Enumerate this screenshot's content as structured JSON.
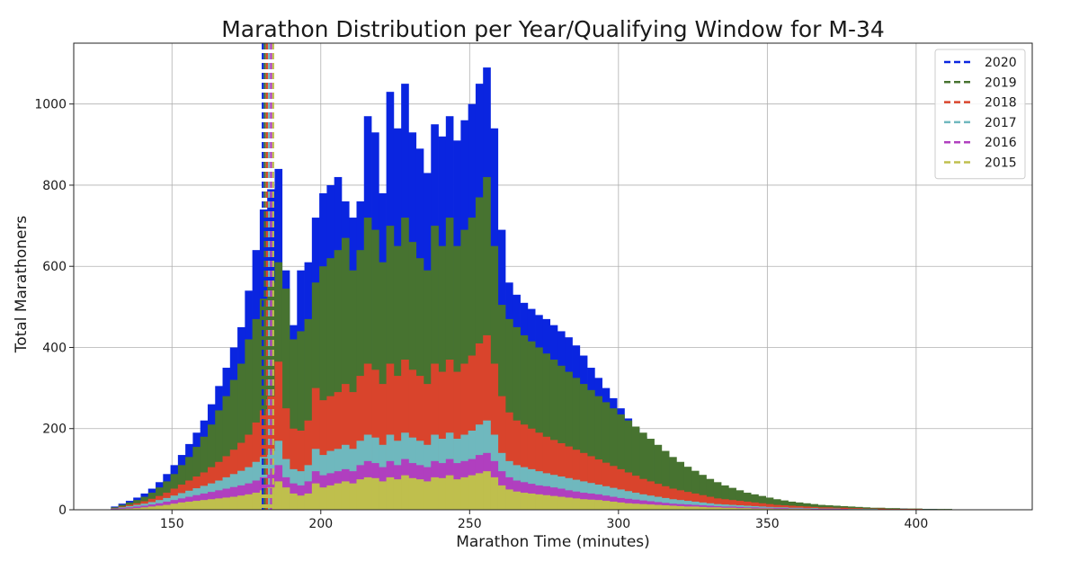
{
  "chart_data": {
    "type": "histogram",
    "title": "Marathon Distribution per Year/Qualifying Window for M-34",
    "xlabel": "Marathon Time (minutes)",
    "ylabel": "Total Marathoners",
    "xlim": [
      117,
      439
    ],
    "ylim": [
      0,
      1150
    ],
    "xticks": [
      150,
      200,
      250,
      300,
      350,
      400
    ],
    "yticks": [
      0,
      200,
      400,
      600,
      800,
      1000
    ],
    "grid": true,
    "legend_position": "top-right",
    "bin_start": 127,
    "bin_width": 2.5,
    "series": [
      {
        "name": "2015",
        "color": "#bfbf4d",
        "values": [
          0,
          1,
          2,
          3,
          4,
          6,
          8,
          10,
          12,
          15,
          18,
          20,
          22,
          24,
          26,
          28,
          30,
          32,
          35,
          38,
          42,
          48,
          55,
          70,
          55,
          40,
          35,
          40,
          65,
          55,
          60,
          65,
          70,
          65,
          75,
          80,
          78,
          70,
          80,
          75,
          85,
          78,
          75,
          70,
          80,
          78,
          85,
          75,
          80,
          85,
          90,
          95,
          80,
          60,
          50,
          45,
          42,
          40,
          38,
          36,
          34,
          32,
          30,
          28,
          26,
          25,
          24,
          22,
          20,
          18,
          16,
          15,
          14,
          13,
          12,
          11,
          10,
          9,
          8,
          8,
          7,
          6,
          6,
          5,
          5,
          4,
          4,
          3,
          3,
          3,
          2,
          2,
          2,
          2,
          2,
          1,
          1,
          1,
          1,
          1,
          1,
          1,
          1,
          1,
          1,
          1,
          1,
          1,
          1,
          1,
          1,
          1,
          1,
          1,
          1,
          1,
          1
        ]
      },
      {
        "name": "2016",
        "color": "#b03fbf",
        "values": [
          0,
          2,
          4,
          6,
          8,
          10,
          13,
          16,
          20,
          24,
          28,
          32,
          36,
          40,
          44,
          48,
          52,
          56,
          60,
          65,
          72,
          80,
          90,
          110,
          80,
          65,
          60,
          70,
          95,
          85,
          90,
          95,
          100,
          95,
          110,
          120,
          115,
          105,
          120,
          110,
          125,
          115,
          110,
          105,
          120,
          115,
          125,
          115,
          120,
          125,
          135,
          140,
          120,
          95,
          80,
          72,
          68,
          64,
          60,
          58,
          55,
          52,
          48,
          45,
          42,
          40,
          38,
          35,
          32,
          29,
          27,
          25,
          23,
          21,
          19,
          17,
          15,
          14,
          13,
          12,
          11,
          10,
          9,
          8,
          8,
          7,
          6,
          6,
          5,
          5,
          4,
          4,
          3,
          3,
          3,
          2,
          2,
          2,
          2,
          2,
          1,
          1,
          1,
          1,
          1,
          1,
          1,
          1,
          1,
          1,
          1,
          1,
          1,
          1,
          1,
          1,
          1
        ]
      },
      {
        "name": "2017",
        "color": "#6fb8be",
        "values": [
          0,
          3,
          6,
          9,
          12,
          15,
          19,
          24,
          29,
          35,
          41,
          47,
          53,
          59,
          65,
          72,
          80,
          88,
          96,
          105,
          118,
          130,
          145,
          170,
          125,
          100,
          95,
          110,
          150,
          135,
          145,
          150,
          160,
          150,
          170,
          185,
          178,
          160,
          185,
          170,
          190,
          178,
          170,
          160,
          185,
          175,
          190,
          175,
          185,
          195,
          210,
          220,
          185,
          140,
          120,
          110,
          105,
          100,
          95,
          90,
          86,
          82,
          78,
          74,
          70,
          66,
          62,
          58,
          54,
          50,
          46,
          42,
          38,
          35,
          32,
          29,
          26,
          24,
          22,
          20,
          18,
          16,
          14,
          13,
          12,
          11,
          10,
          9,
          8,
          7,
          6,
          6,
          5,
          5,
          4,
          4,
          3,
          3,
          3,
          2,
          2,
          2,
          2,
          2,
          1,
          1,
          1,
          1,
          1,
          1,
          1,
          1,
          1,
          1,
          1,
          1,
          1
        ]
      },
      {
        "name": "2018",
        "color": "#d9442c",
        "values": [
          0,
          4,
          8,
          12,
          16,
          21,
          27,
          34,
          42,
          52,
          62,
          72,
          82,
          92,
          105,
          118,
          132,
          148,
          165,
          185,
          215,
          245,
          280,
          365,
          250,
          200,
          195,
          220,
          300,
          270,
          280,
          290,
          310,
          290,
          330,
          360,
          345,
          310,
          360,
          330,
          370,
          345,
          330,
          310,
          360,
          340,
          370,
          340,
          360,
          380,
          410,
          430,
          360,
          280,
          240,
          220,
          210,
          200,
          190,
          180,
          172,
          164,
          156,
          148,
          140,
          132,
          124,
          116,
          108,
          100,
          92,
          84,
          76,
          70,
          64,
          58,
          52,
          48,
          44,
          40,
          36,
          32,
          28,
          26,
          24,
          22,
          20,
          18,
          16,
          14,
          12,
          11,
          10,
          9,
          8,
          7,
          6,
          6,
          5,
          5,
          4,
          4,
          3,
          3,
          3,
          2,
          2,
          2,
          2,
          2,
          1,
          1,
          1,
          1,
          1,
          1,
          1
        ]
      },
      {
        "name": "2019",
        "color": "#477330",
        "values": [
          0,
          6,
          12,
          18,
          24,
          32,
          42,
          55,
          70,
          88,
          110,
          130,
          155,
          180,
          210,
          245,
          280,
          320,
          360,
          420,
          470,
          520,
          560,
          610,
          545,
          420,
          440,
          470,
          560,
          600,
          620,
          640,
          670,
          590,
          640,
          720,
          690,
          610,
          700,
          650,
          720,
          660,
          620,
          590,
          700,
          650,
          720,
          650,
          690,
          720,
          770,
          820,
          650,
          505,
          470,
          450,
          430,
          415,
          400,
          385,
          370,
          355,
          340,
          325,
          310,
          295,
          280,
          265,
          250,
          235,
          220,
          205,
          190,
          175,
          160,
          145,
          130,
          118,
          106,
          96,
          86,
          76,
          68,
          60,
          54,
          48,
          42,
          38,
          34,
          30,
          26,
          23,
          20,
          18,
          16,
          14,
          12,
          11,
          10,
          9,
          8,
          7,
          6,
          5,
          5,
          4,
          4,
          3,
          3,
          3,
          2,
          2,
          2,
          2,
          1,
          1,
          1
        ]
      },
      {
        "name": "2020",
        "color": "#0a25e0",
        "values": [
          0,
          8,
          15,
          22,
          30,
          40,
          52,
          68,
          88,
          110,
          135,
          162,
          190,
          220,
          260,
          305,
          350,
          400,
          450,
          540,
          640,
          740,
          790,
          840,
          590,
          455,
          590,
          610,
          720,
          780,
          800,
          820,
          760,
          720,
          760,
          970,
          930,
          780,
          1030,
          940,
          1050,
          930,
          890,
          830,
          950,
          920,
          970,
          910,
          960,
          1000,
          1050,
          1090,
          940,
          690,
          560,
          530,
          510,
          495,
          480,
          470,
          455,
          440,
          425,
          405,
          380,
          350,
          325,
          300,
          275,
          250,
          225,
          200,
          180,
          160,
          140,
          125,
          112,
          100,
          90,
          80,
          72,
          64,
          58,
          52,
          46,
          41,
          36,
          32,
          28,
          24,
          21,
          18,
          16,
          14,
          12,
          11,
          10,
          9,
          8,
          7,
          6,
          5,
          5,
          4,
          4,
          3,
          3,
          3,
          2,
          2,
          2,
          2,
          1,
          1,
          1
        ]
      }
    ],
    "qualifying_lines": [
      {
        "name": "2020",
        "x": 180.5,
        "color": "#0a25e0"
      },
      {
        "name": "2019",
        "x": 181.2,
        "color": "#477330"
      },
      {
        "name": "2018",
        "x": 181.9,
        "color": "#d9442c"
      },
      {
        "name": "2017",
        "x": 182.6,
        "color": "#6fb8be"
      },
      {
        "name": "2016",
        "x": 183.3,
        "color": "#b03fbf"
      },
      {
        "name": "2015",
        "x": 184.0,
        "color": "#bfbf4d"
      }
    ],
    "legend": [
      "2020",
      "2019",
      "2018",
      "2017",
      "2016",
      "2015"
    ]
  }
}
